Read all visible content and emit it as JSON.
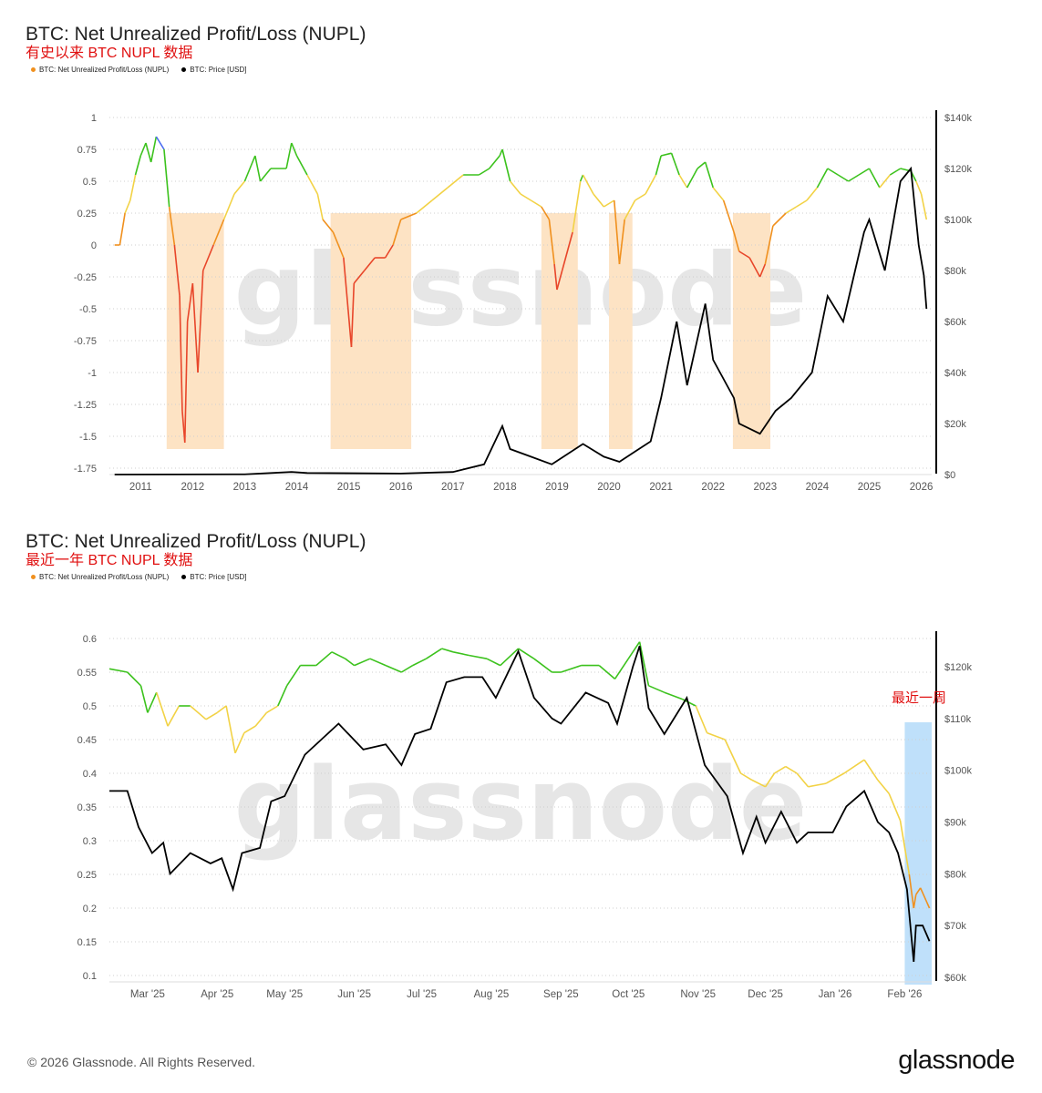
{
  "footer": {
    "copyright": "© 2026 Glassnode. All Rights Reserved.",
    "logo": "glassnode"
  },
  "watermark": "glassnode",
  "colors": {
    "blue": "#4a6cf0",
    "green": "#3cc21d",
    "yellow": "#f2d245",
    "orange": "#f0901e",
    "red": "#e8462a",
    "price": "#000000",
    "bear_shade": "#fde3c4",
    "recent_shade": "#bfe0fa",
    "annotation": "#e01010"
  },
  "chart_data": [
    {
      "type": "line",
      "title": "BTC: Net Unrealized Profit/Loss (NUPL)",
      "subtitle": "有史以来 BTC NUPL 数据",
      "legend": [
        {
          "name": "BTC: Net Unrealized Profit/Loss (NUPL)",
          "color": "#f0901e"
        },
        {
          "name": "BTC: Price [USD]",
          "color": "#000000"
        }
      ],
      "legend_placement": "top-left",
      "grid": true,
      "xlim": [
        2010.4,
        2026.2
      ],
      "x_ticks": [
        "2011",
        "2012",
        "2013",
        "2014",
        "2015",
        "2016",
        "2017",
        "2018",
        "2019",
        "2020",
        "2021",
        "2022",
        "2023",
        "2024",
        "2025",
        "2026"
      ],
      "ylim_left": [
        -1.75,
        1
      ],
      "y_left_ticks": [
        "1",
        "0.75",
        "0.5",
        "0.25",
        "0",
        "-0.25",
        "-0.5",
        "-0.75",
        "-1",
        "-1.25",
        "-1.5",
        "-1.75"
      ],
      "ylim_right": [
        0,
        140000
      ],
      "y_right_ticks": [
        "$140k",
        "$120k",
        "$100k",
        "$80k",
        "$60k",
        "$40k",
        "$20k",
        "$0"
      ],
      "shaded_regions": [
        [
          2011.5,
          2012.6
        ],
        [
          2014.65,
          2016.2
        ],
        [
          2018.7,
          2019.4
        ],
        [
          2020.0,
          2020.45
        ],
        [
          2022.38,
          2023.1
        ]
      ],
      "shade_range": [
        -1.6,
        0.25
      ],
      "series": [
        {
          "name": "BTC: Net Unrealized Profit/Loss (NUPL)",
          "x": [
            2010.5,
            2010.6,
            2010.7,
            2010.8,
            2010.9,
            2011.0,
            2011.1,
            2011.2,
            2011.3,
            2011.45,
            2011.55,
            2011.65,
            2011.75,
            2011.8,
            2011.85,
            2011.9,
            2012.0,
            2012.1,
            2012.2,
            2012.4,
            2012.6,
            2012.8,
            2013.0,
            2013.2,
            2013.3,
            2013.5,
            2013.8,
            2013.9,
            2014.0,
            2014.2,
            2014.4,
            2014.5,
            2014.7,
            2014.9,
            2015.05,
            2015.1,
            2015.3,
            2015.5,
            2015.7,
            2015.85,
            2016.0,
            2016.3,
            2016.6,
            2016.9,
            2017.2,
            2017.5,
            2017.7,
            2017.9,
            2017.95,
            2018.1,
            2018.3,
            2018.5,
            2018.7,
            2018.85,
            2018.95,
            2019.0,
            2019.1,
            2019.3,
            2019.45,
            2019.5,
            2019.7,
            2019.9,
            2020.1,
            2020.2,
            2020.3,
            2020.5,
            2020.7,
            2020.9,
            2021.0,
            2021.2,
            2021.35,
            2021.5,
            2021.7,
            2021.85,
            2022.0,
            2022.2,
            2022.4,
            2022.5,
            2022.7,
            2022.9,
            2023.0,
            2023.15,
            2023.4,
            2023.6,
            2023.8,
            2024.0,
            2024.2,
            2024.4,
            2024.6,
            2024.8,
            2025.0,
            2025.2,
            2025.4,
            2025.6,
            2025.8,
            2025.9,
            2026.0,
            2026.1
          ],
          "y": [
            0,
            0,
            0.25,
            0.35,
            0.55,
            0.7,
            0.8,
            0.65,
            0.85,
            0.75,
            0.3,
            0,
            -0.4,
            -1.3,
            -1.55,
            -0.6,
            -0.3,
            -1.0,
            -0.2,
            0,
            0.2,
            0.4,
            0.5,
            0.7,
            0.5,
            0.6,
            0.6,
            0.8,
            0.7,
            0.55,
            0.4,
            0.2,
            0.1,
            -0.1,
            -0.8,
            -0.3,
            -0.2,
            -0.1,
            -0.1,
            0,
            0.2,
            0.25,
            0.35,
            0.45,
            0.55,
            0.55,
            0.6,
            0.7,
            0.75,
            0.5,
            0.4,
            0.35,
            0.3,
            0.2,
            -0.15,
            -0.35,
            -0.2,
            0.1,
            0.5,
            0.55,
            0.4,
            0.3,
            0.35,
            -0.15,
            0.2,
            0.35,
            0.4,
            0.55,
            0.7,
            0.72,
            0.55,
            0.45,
            0.6,
            0.65,
            0.45,
            0.35,
            0.1,
            -0.05,
            -0.1,
            -0.25,
            -0.15,
            0.15,
            0.25,
            0.3,
            0.35,
            0.45,
            0.6,
            0.55,
            0.5,
            0.55,
            0.6,
            0.45,
            0.55,
            0.6,
            0.58,
            0.5,
            0.4,
            0.2
          ]
        },
        {
          "name": "BTC: Price [USD]",
          "axis": "right",
          "x": [
            2010.5,
            2013.0,
            2013.9,
            2014.2,
            2016.0,
            2017.0,
            2017.6,
            2017.95,
            2018.1,
            2018.5,
            2018.9,
            2019.5,
            2019.9,
            2020.2,
            2020.5,
            2020.8,
            2021.0,
            2021.3,
            2021.5,
            2021.85,
            2022.0,
            2022.4,
            2022.5,
            2022.9,
            2023.2,
            2023.5,
            2023.9,
            2024.2,
            2024.5,
            2024.9,
            2025.0,
            2025.3,
            2025.6,
            2025.8,
            2025.95,
            2026.05,
            2026.1
          ],
          "y": [
            0,
            100,
            1000,
            600,
            400,
            1000,
            4000,
            19000,
            10000,
            7000,
            4000,
            12000,
            7000,
            5000,
            9000,
            13000,
            30000,
            60000,
            35000,
            67000,
            45000,
            30000,
            20000,
            16000,
            25000,
            30000,
            40000,
            70000,
            60000,
            95000,
            100000,
            80000,
            115000,
            120000,
            90000,
            78000,
            65000
          ]
        }
      ]
    },
    {
      "type": "line",
      "title": "BTC: Net Unrealized Profit/Loss (NUPL)",
      "subtitle": "最近一年 BTC NUPL 数据",
      "annotation": "最近一周",
      "legend": [
        {
          "name": "BTC: Net Unrealized Profit/Loss (NUPL)",
          "color": "#f0901e"
        },
        {
          "name": "BTC: Price [USD]",
          "color": "#000000"
        }
      ],
      "legend_placement": "top-left",
      "grid": true,
      "xlim": [
        "2025-02-12",
        "2026-02-13"
      ],
      "x_ticks": [
        {
          "label": "Mar '25",
          "date": "2025-03-01"
        },
        {
          "label": "Apr '25",
          "date": "2025-04-01"
        },
        {
          "label": "May '25",
          "date": "2025-05-01"
        },
        {
          "label": "Jun '25",
          "date": "2025-06-01"
        },
        {
          "label": "Jul '25",
          "date": "2025-07-01"
        },
        {
          "label": "Aug '25",
          "date": "2025-08-01"
        },
        {
          "label": "Sep '25",
          "date": "2025-09-01"
        },
        {
          "label": "Oct '25",
          "date": "2025-10-01"
        },
        {
          "label": "Nov '25",
          "date": "2025-11-01"
        },
        {
          "label": "Dec '25",
          "date": "2025-12-01"
        },
        {
          "label": "Jan '26",
          "date": "2026-01-01"
        },
        {
          "label": "Feb '26",
          "date": "2026-02-01"
        }
      ],
      "ylim_left": [
        0.1,
        0.6
      ],
      "y_left_ticks": [
        "0.6",
        "0.55",
        "0.5",
        "0.45",
        "0.4",
        "0.35",
        "0.3",
        "0.25",
        "0.2",
        "0.15",
        "0.1"
      ],
      "ylim_right": [
        60000,
        120000
      ],
      "y_right_ticks": [
        "$120k",
        "$110k",
        "$100k",
        "$90k",
        "$80k",
        "$70k",
        "$60k"
      ],
      "highlight_region": [
        "2026-02-01",
        "2026-02-13"
      ],
      "series": [
        {
          "name": "BTC: Net Unrealized Profit/Loss (NUPL)",
          "x": [
            "2025-02-12",
            "2025-02-20",
            "2025-02-26",
            "2025-03-01",
            "2025-03-05",
            "2025-03-10",
            "2025-03-15",
            "2025-03-20",
            "2025-03-27",
            "2025-04-01",
            "2025-04-05",
            "2025-04-09",
            "2025-04-13",
            "2025-04-18",
            "2025-04-23",
            "2025-04-28",
            "2025-05-02",
            "2025-05-08",
            "2025-05-15",
            "2025-05-22",
            "2025-05-28",
            "2025-06-01",
            "2025-06-08",
            "2025-06-15",
            "2025-06-22",
            "2025-06-27",
            "2025-07-03",
            "2025-07-10",
            "2025-07-15",
            "2025-07-22",
            "2025-07-30",
            "2025-08-05",
            "2025-08-13",
            "2025-08-20",
            "2025-08-28",
            "2025-09-01",
            "2025-09-10",
            "2025-09-18",
            "2025-09-25",
            "2025-10-01",
            "2025-10-06",
            "2025-10-10",
            "2025-10-17",
            "2025-10-25",
            "2025-10-31",
            "2025-11-05",
            "2025-11-13",
            "2025-11-20",
            "2025-11-25",
            "2025-12-01",
            "2025-12-05",
            "2025-12-10",
            "2025-12-15",
            "2025-12-20",
            "2025-12-28",
            "2026-01-05",
            "2026-01-14",
            "2026-01-20",
            "2026-01-25",
            "2026-01-30",
            "2026-02-03",
            "2026-02-05",
            "2026-02-06",
            "2026-02-08",
            "2026-02-12"
          ],
          "y": [
            0.555,
            0.55,
            0.53,
            0.49,
            0.52,
            0.47,
            0.5,
            0.5,
            0.48,
            0.49,
            0.5,
            0.43,
            0.46,
            0.47,
            0.49,
            0.5,
            0.53,
            0.56,
            0.56,
            0.58,
            0.57,
            0.56,
            0.57,
            0.56,
            0.55,
            0.56,
            0.57,
            0.585,
            0.58,
            0.575,
            0.57,
            0.56,
            0.585,
            0.57,
            0.55,
            0.55,
            0.56,
            0.56,
            0.54,
            0.57,
            0.595,
            0.53,
            0.52,
            0.51,
            0.5,
            0.46,
            0.45,
            0.4,
            0.39,
            0.38,
            0.4,
            0.41,
            0.4,
            0.38,
            0.385,
            0.4,
            0.42,
            0.39,
            0.37,
            0.33,
            0.25,
            0.2,
            0.22,
            0.23,
            0.2
          ]
        },
        {
          "name": "BTC: Price [USD]",
          "axis": "right",
          "x": [
            "2025-02-12",
            "2025-02-20",
            "2025-02-25",
            "2025-03-03",
            "2025-03-08",
            "2025-03-11",
            "2025-03-20",
            "2025-03-29",
            "2025-04-03",
            "2025-04-08",
            "2025-04-12",
            "2025-04-20",
            "2025-04-25",
            "2025-05-01",
            "2025-05-10",
            "2025-05-20",
            "2025-05-25",
            "2025-06-05",
            "2025-06-15",
            "2025-06-22",
            "2025-06-28",
            "2025-07-05",
            "2025-07-12",
            "2025-07-20",
            "2025-07-28",
            "2025-08-03",
            "2025-08-13",
            "2025-08-20",
            "2025-08-28",
            "2025-09-01",
            "2025-09-12",
            "2025-09-22",
            "2025-09-26",
            "2025-10-03",
            "2025-10-06",
            "2025-10-10",
            "2025-10-17",
            "2025-10-27",
            "2025-11-04",
            "2025-11-14",
            "2025-11-21",
            "2025-11-27",
            "2025-12-01",
            "2025-12-08",
            "2025-12-15",
            "2025-12-20",
            "2025-12-31",
            "2026-01-06",
            "2026-01-14",
            "2026-01-20",
            "2026-01-25",
            "2026-01-29",
            "2026-02-02",
            "2026-02-05",
            "2026-02-06",
            "2026-02-09",
            "2026-02-12"
          ],
          "y": [
            96000,
            96000,
            89000,
            84000,
            86000,
            80000,
            84000,
            82000,
            83000,
            77000,
            84000,
            85000,
            94000,
            95000,
            103000,
            107000,
            109000,
            104000,
            105000,
            101000,
            107000,
            108000,
            117000,
            118000,
            118000,
            114000,
            123000,
            114000,
            110000,
            109000,
            115000,
            113000,
            109000,
            120000,
            124000,
            112000,
            107000,
            114000,
            101000,
            95000,
            84000,
            91000,
            86000,
            92000,
            86000,
            88000,
            88000,
            93000,
            96000,
            90000,
            88000,
            84000,
            77000,
            63000,
            70000,
            70000,
            67000
          ]
        }
      ]
    }
  ]
}
